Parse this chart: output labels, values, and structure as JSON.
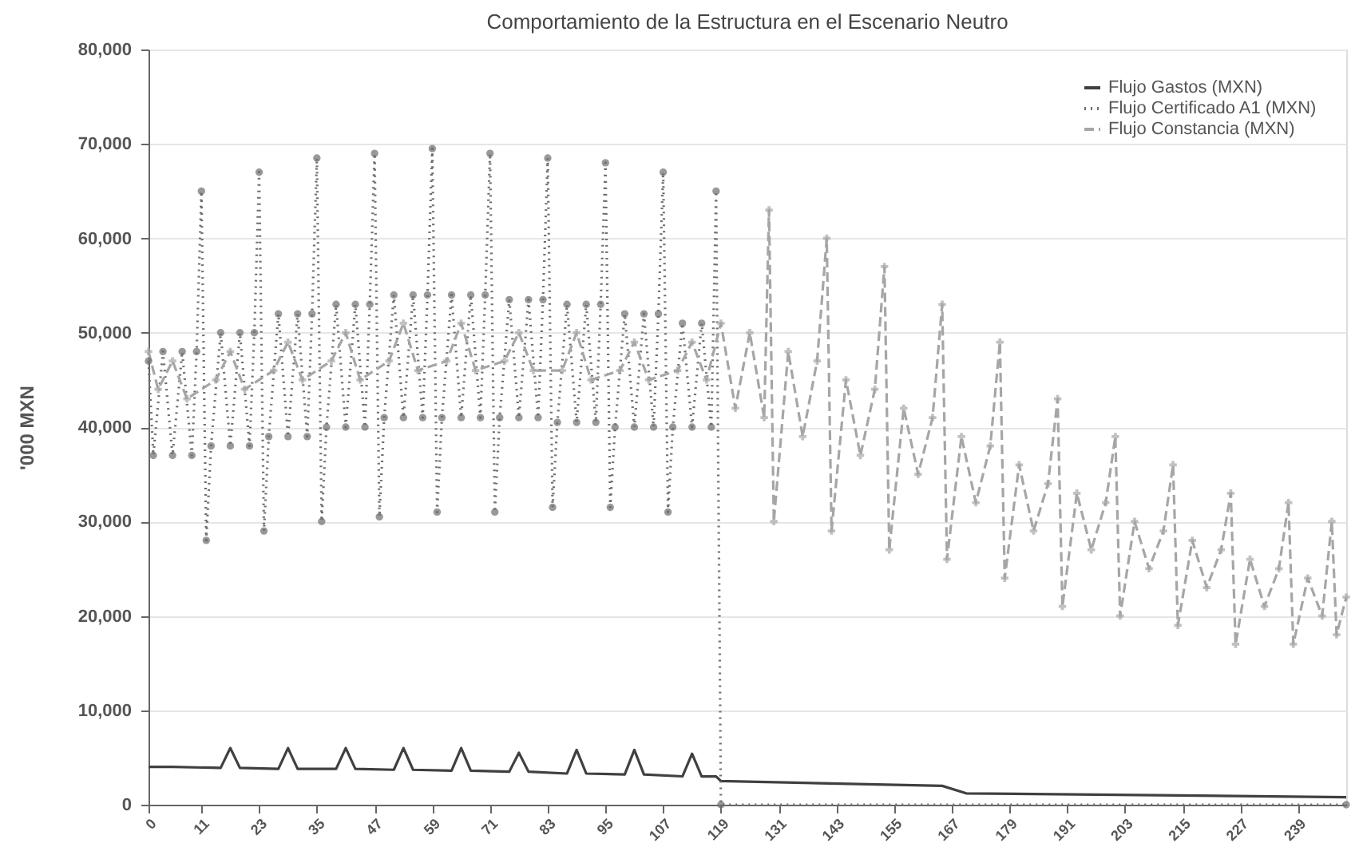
{
  "chart_data": {
    "type": "line",
    "title": "Comportamiento de la Estructura en el Escenario Neutro",
    "ylabel": "'000 MXN",
    "xlim": [
      0,
      249
    ],
    "xticks": [
      0,
      11,
      23,
      35,
      47,
      59,
      71,
      83,
      95,
      107,
      119,
      131,
      143,
      155,
      167,
      179,
      191,
      203,
      215,
      227,
      239
    ],
    "ylim": [
      0,
      80000
    ],
    "yticks": [
      {
        "value": 0,
        "label": "0"
      },
      {
        "value": 10000,
        "label": "10,000"
      },
      {
        "value": 20000,
        "label": "20,000"
      },
      {
        "value": 30000,
        "label": "30,000"
      },
      {
        "value": 40000,
        "label": "40,000"
      },
      {
        "value": 50000,
        "label": "50,000"
      },
      {
        "value": 60000,
        "label": "60,000"
      },
      {
        "value": 70000,
        "label": "70,000"
      },
      {
        "value": 80000,
        "label": "80,000"
      }
    ],
    "grid": "y",
    "legend": "top right",
    "series": [
      {
        "name": "Flujo Gastos (MXN)",
        "color": "#404040",
        "marker": "none",
        "line_style": "solid",
        "x": [
          0,
          5,
          15,
          17,
          19,
          27,
          29,
          31,
          39,
          41,
          43,
          51,
          53,
          55,
          63,
          65,
          67,
          75,
          77,
          79,
          87,
          89,
          91,
          99,
          101,
          103,
          111,
          113,
          115,
          118,
          119,
          165,
          170,
          249
        ],
        "values": [
          4000,
          4000,
          3900,
          6000,
          3900,
          3800,
          6000,
          3800,
          3800,
          6000,
          3800,
          3700,
          6000,
          3700,
          3600,
          6000,
          3600,
          3500,
          5500,
          3500,
          3300,
          5800,
          3300,
          3200,
          5800,
          3200,
          3000,
          5400,
          3000,
          3000,
          2500,
          2000,
          1200,
          800
        ]
      },
      {
        "name": "Flujo Certificado A1 (MXN)",
        "color": "#6e6e6e",
        "marker": "circle",
        "line_style": "dotted",
        "x": [
          0,
          1,
          3,
          5,
          7,
          9,
          10,
          11,
          12,
          13,
          15,
          17,
          19,
          21,
          22,
          23,
          24,
          25,
          27,
          29,
          31,
          33,
          34,
          35,
          36,
          37,
          39,
          41,
          43,
          45,
          46,
          47,
          48,
          49,
          51,
          53,
          55,
          57,
          58,
          59,
          60,
          61,
          63,
          65,
          67,
          69,
          70,
          71,
          72,
          73,
          75,
          77,
          79,
          81,
          82,
          83,
          84,
          85,
          87,
          89,
          91,
          93,
          94,
          95,
          96,
          97,
          99,
          101,
          103,
          105,
          106,
          107,
          108,
          109,
          111,
          113,
          115,
          117,
          118,
          119,
          249
        ],
        "values": [
          47000,
          37000,
          48000,
          37000,
          48000,
          37000,
          48000,
          65000,
          28000,
          38000,
          50000,
          38000,
          50000,
          38000,
          50000,
          67000,
          29000,
          39000,
          52000,
          39000,
          52000,
          39000,
          52000,
          68500,
          30000,
          40000,
          53000,
          40000,
          53000,
          40000,
          53000,
          69000,
          30500,
          41000,
          54000,
          41000,
          54000,
          41000,
          54000,
          69500,
          31000,
          41000,
          54000,
          41000,
          54000,
          41000,
          54000,
          69000,
          31000,
          41000,
          53500,
          41000,
          53500,
          41000,
          53500,
          68500,
          31500,
          40500,
          53000,
          40500,
          53000,
          40500,
          53000,
          68000,
          31500,
          40000,
          52000,
          40000,
          52000,
          40000,
          52000,
          67000,
          31000,
          40000,
          51000,
          40000,
          51000,
          40000,
          65000,
          0,
          0
        ]
      },
      {
        "name": "Flujo Constancia (MXN)",
        "color": "#a6a6a6",
        "marker": "cross",
        "line_style": "dashed",
        "x": [
          0,
          2,
          5,
          8,
          14,
          17,
          20,
          26,
          29,
          32,
          38,
          41,
          44,
          50,
          53,
          56,
          62,
          65,
          68,
          74,
          77,
          80,
          86,
          89,
          92,
          98,
          101,
          104,
          110,
          113,
          116,
          119,
          122,
          125,
          128,
          129,
          130,
          133,
          136,
          139,
          141,
          142,
          145,
          148,
          151,
          153,
          154,
          157,
          160,
          163,
          165,
          166,
          169,
          172,
          175,
          177,
          178,
          181,
          184,
          187,
          189,
          190,
          193,
          196,
          199,
          201,
          202,
          205,
          208,
          211,
          213,
          214,
          217,
          220,
          223,
          225,
          226,
          229,
          232,
          235,
          237,
          238,
          241,
          244,
          246,
          247,
          249
        ],
        "values": [
          48000,
          44000,
          47000,
          43000,
          45000,
          48000,
          44000,
          46000,
          49000,
          45000,
          47000,
          50000,
          45000,
          47000,
          51000,
          46000,
          47000,
          51000,
          46000,
          47000,
          50000,
          46000,
          46000,
          50000,
          45000,
          46000,
          49000,
          45000,
          46000,
          49000,
          45000,
          51000,
          42000,
          50000,
          41000,
          63000,
          30000,
          48000,
          39000,
          47000,
          60000,
          29000,
          45000,
          37000,
          44000,
          57000,
          27000,
          42000,
          35000,
          41000,
          53000,
          26000,
          39000,
          32000,
          38000,
          49000,
          24000,
          36000,
          29000,
          34000,
          43000,
          21000,
          33000,
          27000,
          32000,
          39000,
          20000,
          30000,
          25000,
          29000,
          36000,
          19000,
          28000,
          23000,
          27000,
          33000,
          17000,
          26000,
          21000,
          25000,
          32000,
          17000,
          24000,
          20000,
          30000,
          18000,
          22000
        ]
      }
    ]
  }
}
